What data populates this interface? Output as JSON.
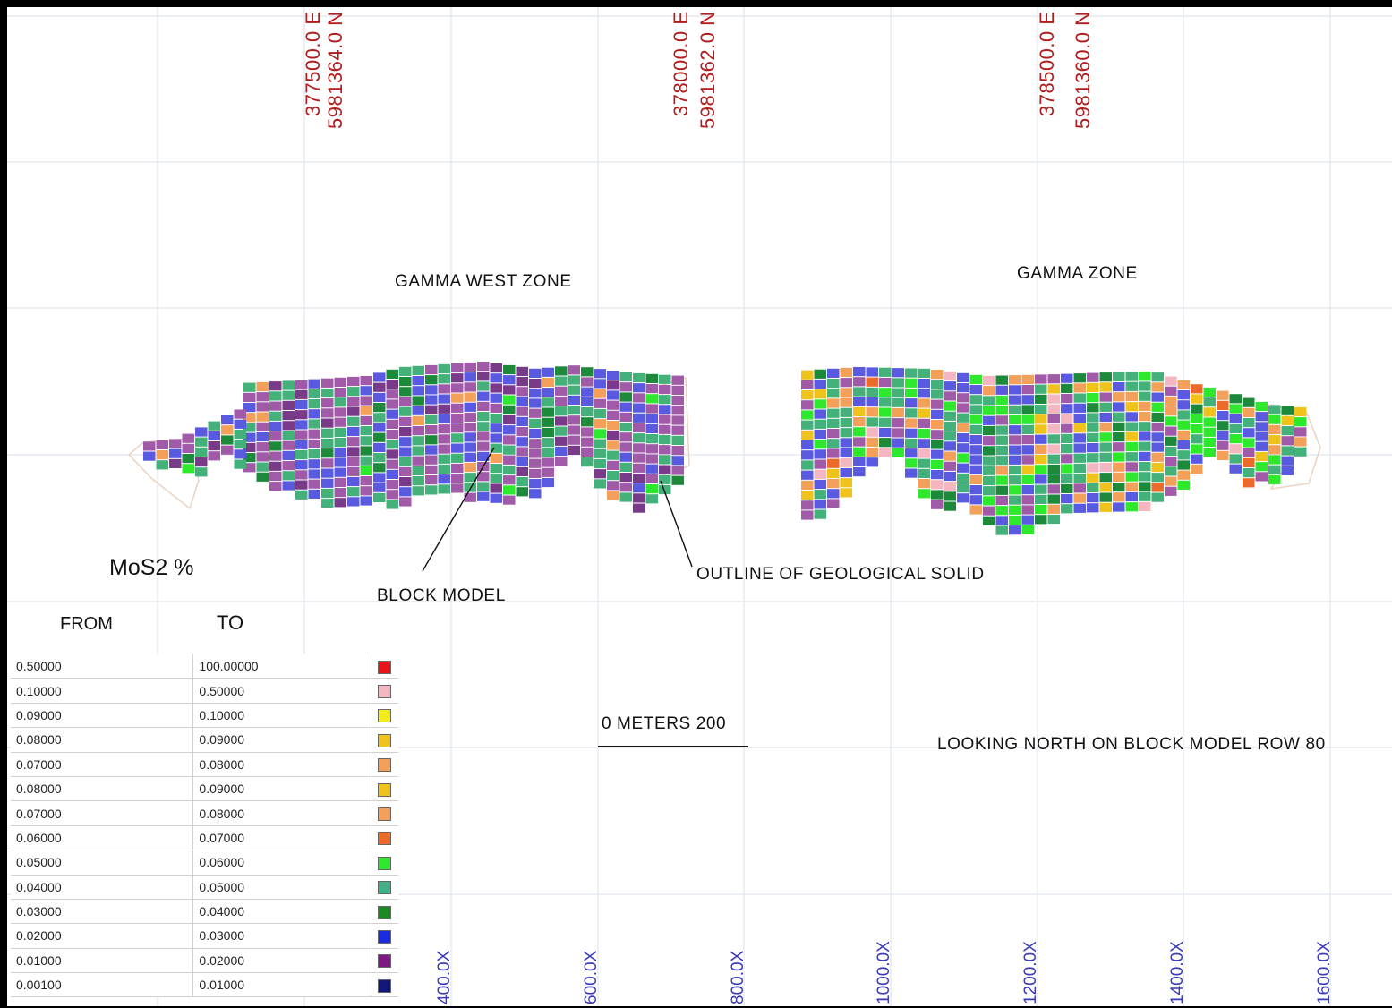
{
  "title": "LOOKING NORTH ON BLOCK MODEL ROW 80",
  "coordinate_labels": [
    {
      "easting": "377500.0 E",
      "northing": "5981364.0 N"
    },
    {
      "easting": "378000.0 E",
      "northing": "5981362.0 N"
    },
    {
      "easting": "378500.0 E",
      "northing": "5981360.0 N"
    }
  ],
  "x_axis_labels": [
    "400.0X",
    "600.0X",
    "800.0X",
    "1000.0X",
    "1200.0X",
    "1400.0X",
    "1600.0X"
  ],
  "zones": {
    "west": "GAMMA WEST ZONE",
    "east": "GAMMA ZONE"
  },
  "annotations": {
    "block_model": "BLOCK MODEL",
    "outline": "OUTLINE OF  GEOLOGICAL SOLID"
  },
  "scale_bar": {
    "label": "0  METERS  200",
    "length_m": 200
  },
  "legend": {
    "title": "MoS2 %",
    "from_header": "FROM",
    "to_header": "TO",
    "rows": [
      {
        "from": "0.50000",
        "to": "100.00000",
        "color": "#e8141c"
      },
      {
        "from": "0.10000",
        "to": "0.50000",
        "color": "#f4b6c0"
      },
      {
        "from": "0.09000",
        "to": "0.10000",
        "color": "#f2ec1c"
      },
      {
        "from": "0.08000",
        "to": "0.09000",
        "color": "#f0c21c"
      },
      {
        "from": "0.07000",
        "to": "0.08000",
        "color": "#f2a05a"
      },
      {
        "from": "0.08000",
        "to": "0.09000",
        "color": "#f0c21c"
      },
      {
        "from": "0.07000",
        "to": "0.08000",
        "color": "#f2a05a"
      },
      {
        "from": "0.06000",
        "to": "0.07000",
        "color": "#ec6a2a"
      },
      {
        "from": "0.05000",
        "to": "0.06000",
        "color": "#2ee82e"
      },
      {
        "from": "0.04000",
        "to": "0.05000",
        "color": "#44b088"
      },
      {
        "from": "0.03000",
        "to": "0.04000",
        "color": "#1c8a24"
      },
      {
        "from": "0.02000",
        "to": "0.03000",
        "color": "#1c2ae0"
      },
      {
        "from": "0.01000",
        "to": "0.02000",
        "color": "#7a1a82"
      },
      {
        "from": "0.00100",
        "to": "0.01000",
        "color": "#12187a"
      }
    ]
  },
  "colors": {
    "grid": "#dfe4ec",
    "coordinate_label": "#b01c1c",
    "axis_label": "#3a3ab8",
    "outline": "#e9d3c3"
  }
}
